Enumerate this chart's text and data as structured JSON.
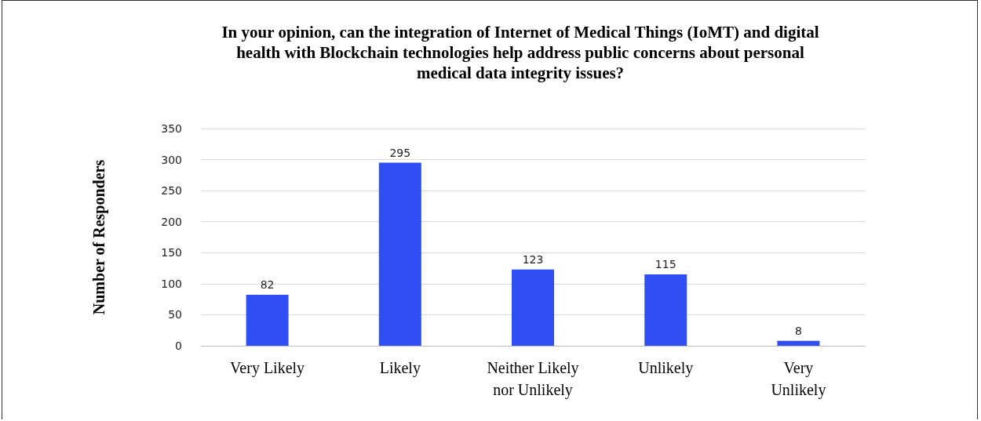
{
  "chart_data": {
    "type": "bar",
    "title": "In your opinion, can the integration of Internet of Medical Things (IoMT) and digital\nhealth with Blockchain technologies help address public concerns about personal\nmedical data integrity issues?",
    "ylabel": "Number of Responders",
    "categories": [
      "Very Likely",
      "Likely",
      "Neither Likely\nnor Unlikely",
      "Unlikely",
      "Very\nUnlikely"
    ],
    "values": [
      82,
      295,
      123,
      115,
      8
    ],
    "color": "#2f4ff5",
    "ylim": [
      0,
      350
    ],
    "yticks": [
      0,
      50,
      100,
      150,
      200,
      250,
      300,
      350
    ],
    "grid": "y",
    "data_labels": true
  }
}
